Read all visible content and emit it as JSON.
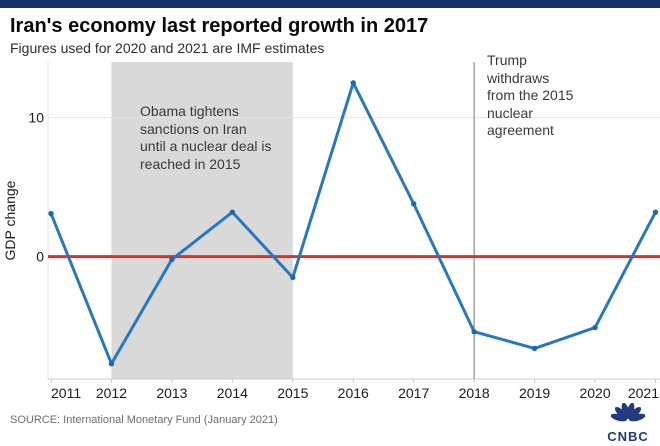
{
  "topbar": {
    "color": "#16326b"
  },
  "header": {
    "title": "Iran's economy last reported growth in 2017",
    "subtitle": "Figures used for 2020 and 2021 are IMF estimates"
  },
  "chart_data": {
    "type": "line",
    "title": "Iran's economy last reported growth in 2017",
    "subtitle": "Figures used for 2020 and 2021 are IMF estimates",
    "x": [
      2011,
      2012,
      2013,
      2014,
      2015,
      2016,
      2017,
      2018,
      2019,
      2020,
      2021
    ],
    "series": [
      {
        "name": "GDP change",
        "color": "#2878be",
        "marker_color": "#1e68ab",
        "values": [
          3.1,
          -7.7,
          -0.2,
          3.2,
          -1.5,
          12.5,
          3.8,
          -5.4,
          -6.6,
          -5.1,
          3.2
        ]
      }
    ],
    "xlabel": "",
    "ylabel": "GDP change",
    "yticks": [
      0,
      10
    ],
    "ylim": [
      -8.8,
      14
    ],
    "legend_position": "none",
    "grid": "sparse-horizontal",
    "zero_line_color": "#d0342c",
    "shaded_region": {
      "from": 2012,
      "to": 2015,
      "color": "#d9d9d9",
      "label": "Obama tightens\nsanctions on Iran\nuntil a nuclear deal is\nreached in 2015"
    },
    "event_line": {
      "x": 2018,
      "color": "#a3a3a3",
      "label": "Trump\nwithdraws\nfrom the 2015\nnuclear\nagreement"
    }
  },
  "footer": {
    "source": "SOURCE: International Monetary Fund (January 2021)",
    "logo_text": "CNBC",
    "logo_color": "#233a7c"
  }
}
